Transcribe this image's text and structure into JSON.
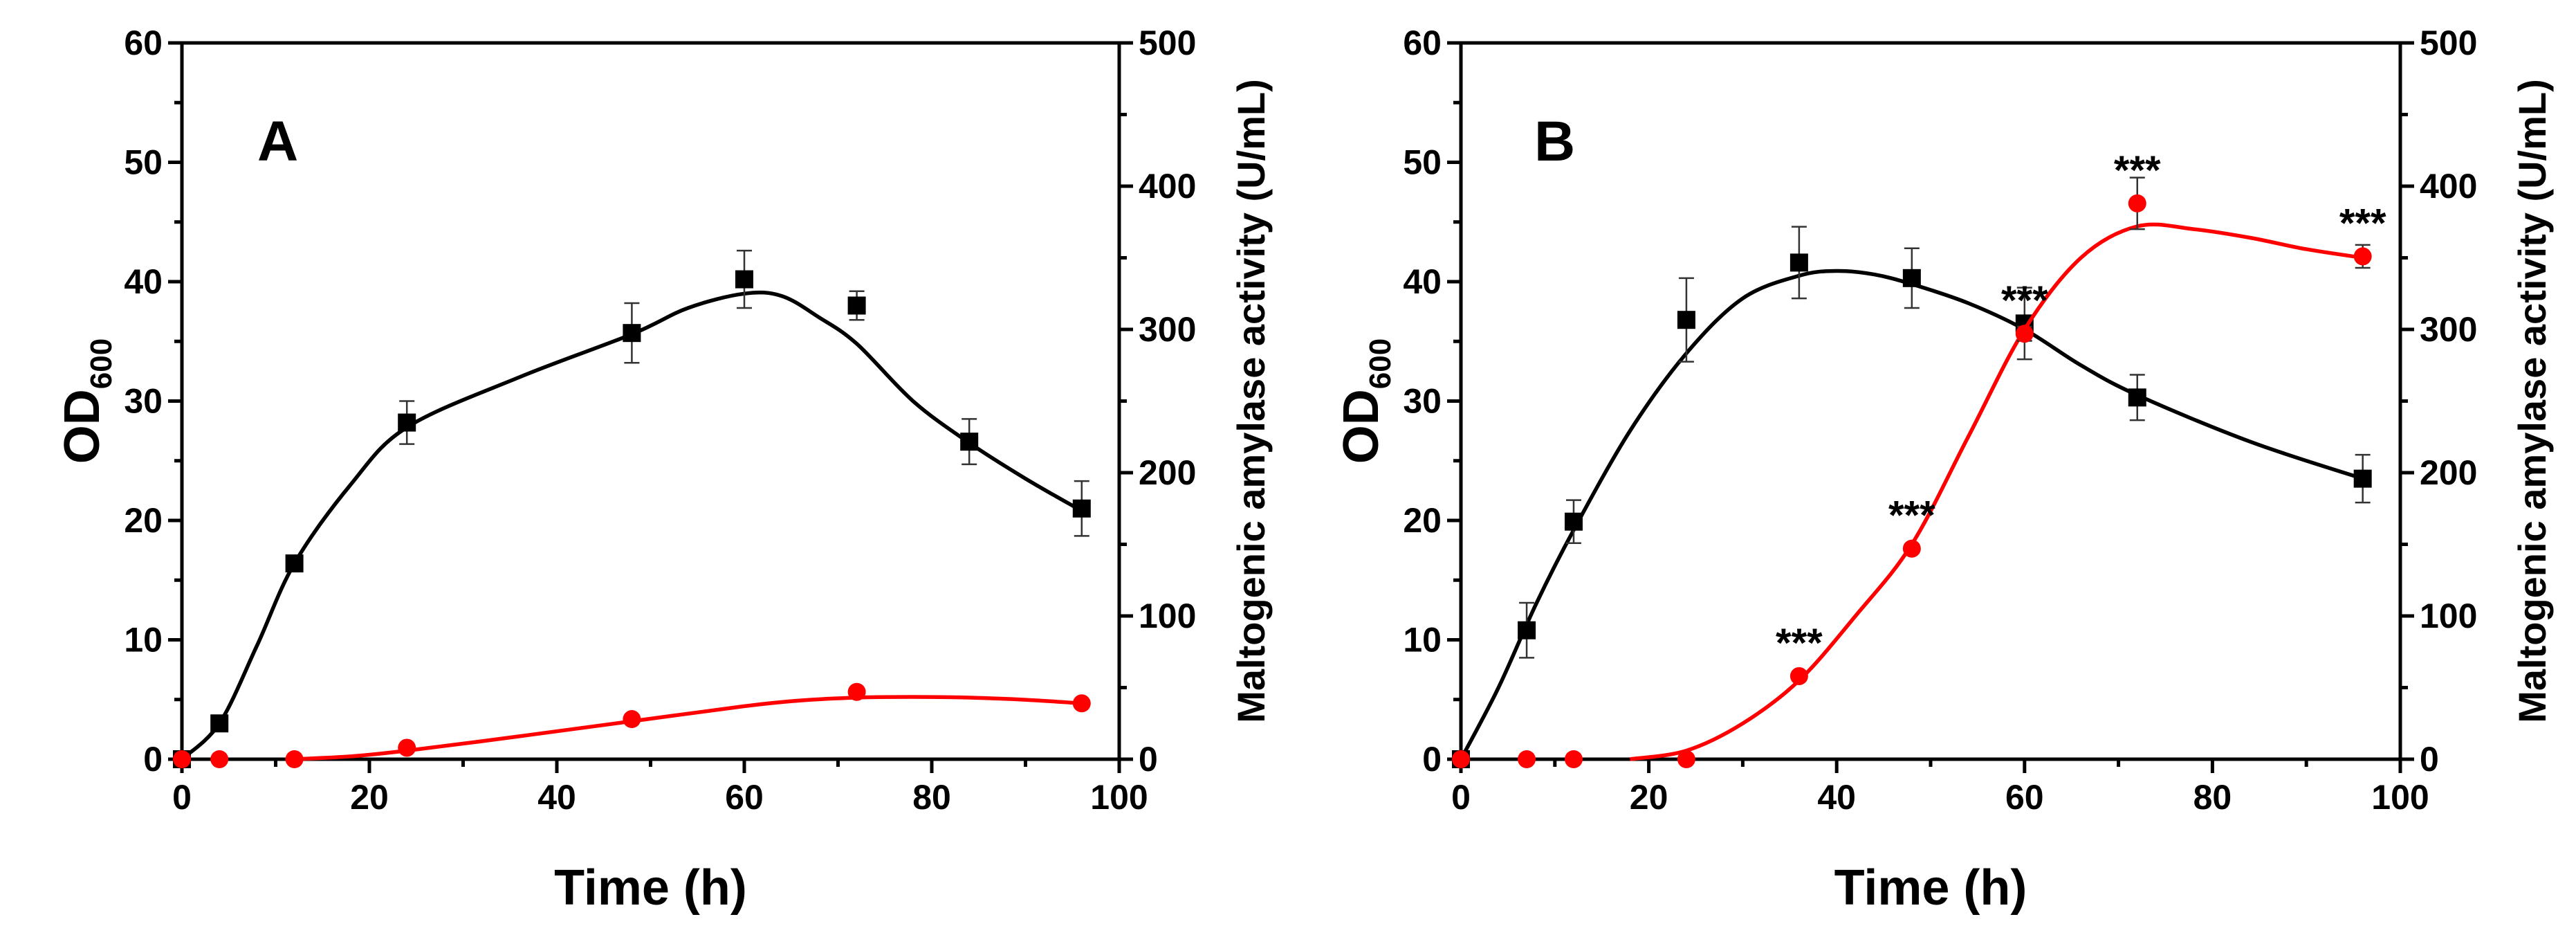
{
  "chart_data": [
    {
      "panel": "A",
      "type": "line",
      "xlabel": "Time (h)",
      "ylabel_main": "OD",
      "ylabel_sub": "600",
      "y2label": "Maltogenic amylase activity (U/mL)",
      "xlim": [
        0,
        100
      ],
      "ylim": [
        0,
        60
      ],
      "y2lim": [
        0,
        500
      ],
      "xticks": [
        0,
        20,
        40,
        60,
        80,
        100
      ],
      "yticks": [
        0,
        10,
        20,
        30,
        40,
        50,
        60
      ],
      "y2ticks": [
        0,
        100,
        200,
        300,
        400,
        500
      ],
      "series": [
        {
          "name": "OD600",
          "axis": "left",
          "color": "#000000",
          "marker": "square",
          "points": [
            {
              "x": 0,
              "y": 0,
              "err": 0
            },
            {
              "x": 4,
              "y": 3,
              "err": 0
            },
            {
              "x": 12,
              "y": 16.4,
              "err": 0.6
            },
            {
              "x": 24,
              "y": 28.2,
              "err": 1.8
            },
            {
              "x": 48,
              "y": 35.7,
              "err": 2.5
            },
            {
              "x": 60,
              "y": 40.2,
              "err": 2.4
            },
            {
              "x": 72,
              "y": 38,
              "err": 1.2
            },
            {
              "x": 84,
              "y": 26.6,
              "err": 1.9
            },
            {
              "x": 96,
              "y": 21,
              "err": 2.3
            }
          ],
          "curve": [
            [
              0,
              0
            ],
            [
              4,
              3
            ],
            [
              8,
              9.5
            ],
            [
              12,
              16.4
            ],
            [
              18,
              23
            ],
            [
              24,
              27.8
            ],
            [
              36,
              32
            ],
            [
              48,
              35.6
            ],
            [
              54,
              37.8
            ],
            [
              60,
              39
            ],
            [
              64,
              38.8
            ],
            [
              68,
              37
            ],
            [
              72,
              34.8
            ],
            [
              78,
              30
            ],
            [
              84,
              26.5
            ],
            [
              90,
              23.5
            ],
            [
              96,
              20.8
            ]
          ],
          "significance": []
        },
        {
          "name": "Maltogenic amylase activity",
          "axis": "right",
          "color": "#ff0000",
          "marker": "circle",
          "points": [
            {
              "x": 0,
              "y": 0,
              "err": 0
            },
            {
              "x": 4,
              "y": 0,
              "err": 0
            },
            {
              "x": 12,
              "y": 0,
              "err": 0
            },
            {
              "x": 24,
              "y": 8,
              "err": 0
            },
            {
              "x": 48,
              "y": 28,
              "err": 0
            },
            {
              "x": 72,
              "y": 47,
              "err": 0
            },
            {
              "x": 96,
              "y": 39,
              "err": 0
            }
          ],
          "curve": [
            [
              12,
              0
            ],
            [
              18,
              2
            ],
            [
              24,
              6
            ],
            [
              36,
              16
            ],
            [
              48,
              26.5
            ],
            [
              60,
              37
            ],
            [
              66,
              41
            ],
            [
              72,
              43
            ],
            [
              78,
              43.5
            ],
            [
              84,
              43
            ],
            [
              90,
              41.5
            ],
            [
              96,
              39
            ]
          ],
          "significance": []
        }
      ]
    },
    {
      "panel": "B",
      "type": "line",
      "xlabel": "Time (h)",
      "ylabel_main": "OD",
      "ylabel_sub": "600",
      "y2label": "Maltogenic amylase activity (U/mL)",
      "xlim": [
        0,
        100
      ],
      "ylim": [
        0,
        60
      ],
      "y2lim": [
        0,
        500
      ],
      "xticks": [
        0,
        20,
        40,
        60,
        80,
        100
      ],
      "yticks": [
        0,
        10,
        20,
        30,
        40,
        50,
        60
      ],
      "y2ticks": [
        0,
        100,
        200,
        300,
        400,
        500
      ],
      "series": [
        {
          "name": "OD600",
          "axis": "left",
          "color": "#000000",
          "marker": "square",
          "points": [
            {
              "x": 0,
              "y": 0,
              "err": 0
            },
            {
              "x": 7,
              "y": 10.8,
              "err": 2.3
            },
            {
              "x": 12,
              "y": 19.9,
              "err": 1.8
            },
            {
              "x": 24,
              "y": 36.8,
              "err": 3.5
            },
            {
              "x": 36,
              "y": 41.6,
              "err": 3
            },
            {
              "x": 48,
              "y": 40.3,
              "err": 2.5
            },
            {
              "x": 60,
              "y": 36.5,
              "err": 3
            },
            {
              "x": 72,
              "y": 30.3,
              "err": 1.9
            },
            {
              "x": 96,
              "y": 23.5,
              "err": 2
            }
          ],
          "curve": [
            [
              0,
              0
            ],
            [
              4,
              6
            ],
            [
              8,
              13
            ],
            [
              12,
              19.2
            ],
            [
              18,
              27.5
            ],
            [
              24,
              34
            ],
            [
              30,
              38.6
            ],
            [
              36,
              40.5
            ],
            [
              40,
              40.9
            ],
            [
              44,
              40.6
            ],
            [
              48,
              39.8
            ],
            [
              54,
              38.2
            ],
            [
              60,
              36
            ],
            [
              66,
              33
            ],
            [
              72,
              30.5
            ],
            [
              84,
              26.6
            ],
            [
              96,
              23.5
            ]
          ],
          "significance": []
        },
        {
          "name": "Maltogenic amylase activity",
          "axis": "right",
          "color": "#ff0000",
          "marker": "circle",
          "points": [
            {
              "x": 0,
              "y": 0,
              "err": 0
            },
            {
              "x": 7,
              "y": 0,
              "err": 0
            },
            {
              "x": 12,
              "y": 0,
              "err": 0
            },
            {
              "x": 24,
              "y": 0,
              "err": 0
            },
            {
              "x": 36,
              "y": 58,
              "err": 3
            },
            {
              "x": 48,
              "y": 147,
              "err": 3
            },
            {
              "x": 60,
              "y": 297,
              "err": 5
            },
            {
              "x": 72,
              "y": 388,
              "err": 18
            },
            {
              "x": 96,
              "y": 351,
              "err": 8
            }
          ],
          "curve": [
            [
              18,
              0
            ],
            [
              24,
              6
            ],
            [
              30,
              25
            ],
            [
              36,
              55
            ],
            [
              42,
              100
            ],
            [
              48,
              150
            ],
            [
              54,
              225
            ],
            [
              60,
              300
            ],
            [
              66,
              350
            ],
            [
              72,
              372
            ],
            [
              78,
              370
            ],
            [
              84,
              364
            ],
            [
              90,
              356
            ],
            [
              96,
              350
            ]
          ],
          "significance": [
            {
              "x": 36,
              "y": 58,
              "label": "***"
            },
            {
              "x": 48,
              "y": 147,
              "label": "***"
            },
            {
              "x": 60,
              "y": 297,
              "label": "***"
            },
            {
              "x": 72,
              "y": 388,
              "label": "***"
            },
            {
              "x": 96,
              "y": 351,
              "label": "***"
            }
          ]
        }
      ]
    }
  ]
}
